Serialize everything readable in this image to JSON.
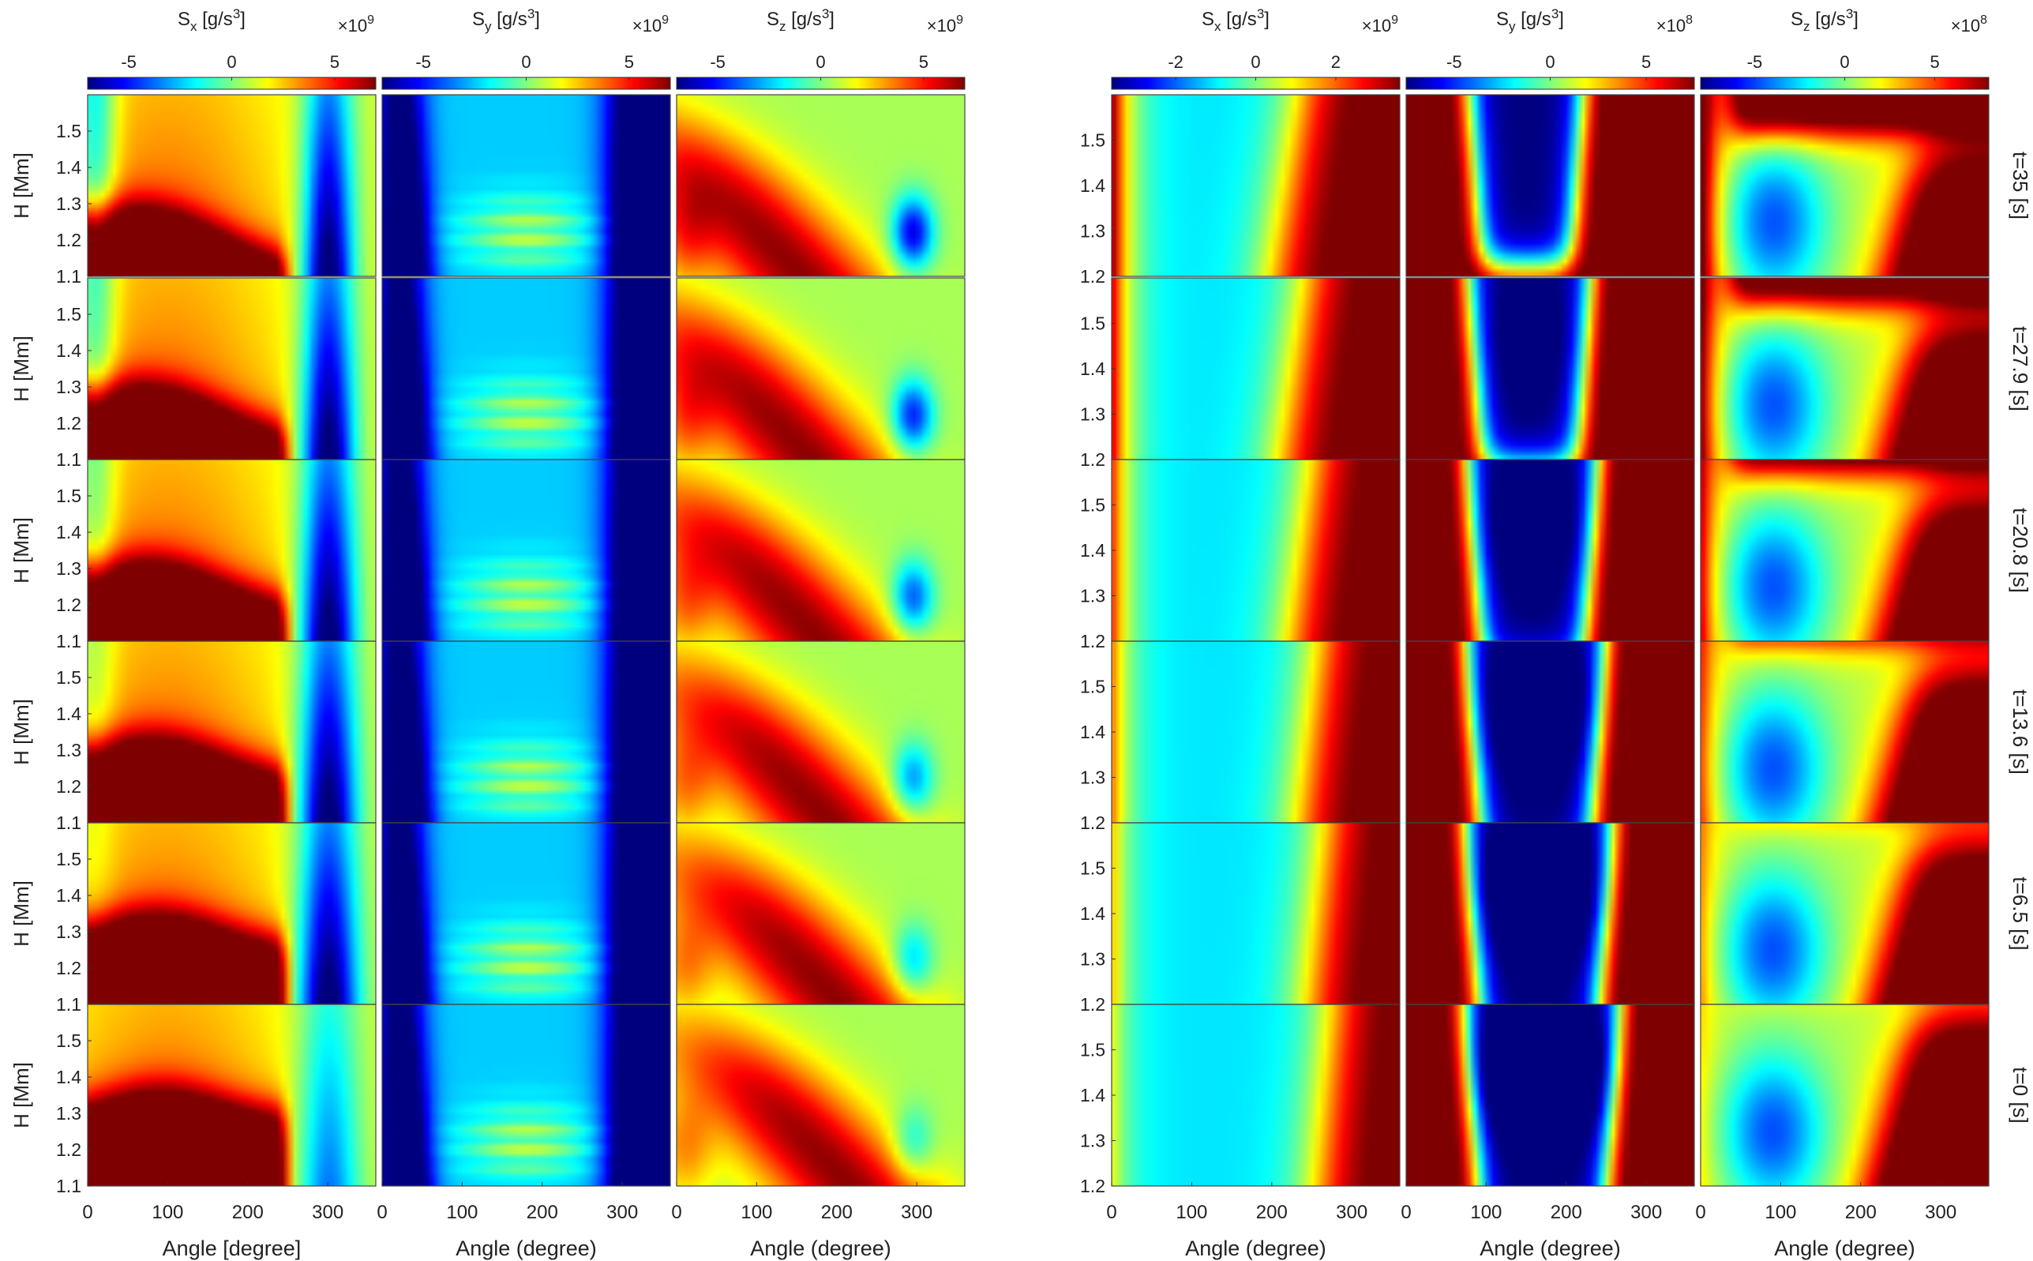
{
  "chart_data": [
    {
      "type": "heatmap",
      "quantity": "S_x",
      "group": "left",
      "colorbar": {
        "label_base": "S",
        "label_sub": "x",
        "label_unit": " [g/s",
        "label_exp": "3",
        "label_tail": "]",
        "multiplier_base": "×10",
        "multiplier_exp": "9",
        "ticks": [
          "-5",
          "0",
          "5"
        ],
        "tick_values": [
          -5,
          0,
          5
        ],
        "range": [
          -7,
          7
        ]
      },
      "xlabel": "Angle [degree]",
      "xticks": [
        "0",
        "100",
        "200",
        "300"
      ],
      "xtick_values": [
        0,
        100,
        200,
        300
      ],
      "xlim": [
        0,
        360
      ],
      "ylabel": "H [Mm]",
      "yticks": [
        "1.1",
        "1.2",
        "1.3",
        "1.4",
        "1.5"
      ],
      "ytick_values": [
        1.1,
        1.2,
        1.3,
        1.4,
        1.5
      ],
      "ylim": [
        1.1,
        1.6
      ],
      "rows": [
        "t=35",
        "t=27.9",
        "t=20.8",
        "t=13.6",
        "t=6.5",
        "t=0"
      ]
    },
    {
      "type": "heatmap",
      "quantity": "S_y",
      "group": "left",
      "colorbar": {
        "label_base": "S",
        "label_sub": "y",
        "label_unit": " [g/s",
        "label_exp": "3",
        "label_tail": "]",
        "multiplier_base": "×10",
        "multiplier_exp": "9",
        "ticks": [
          "-5",
          "0",
          "5"
        ],
        "tick_values": [
          -5,
          0,
          5
        ],
        "range": [
          -7,
          7
        ]
      },
      "xlabel": "Angle (degree)",
      "xticks": [
        "0",
        "100",
        "200",
        "300"
      ],
      "xtick_values": [
        0,
        100,
        200,
        300
      ],
      "xlim": [
        0,
        360
      ],
      "rows": [
        "t=35",
        "t=27.9",
        "t=20.8",
        "t=13.6",
        "t=6.5",
        "t=0"
      ]
    },
    {
      "type": "heatmap",
      "quantity": "S_z",
      "group": "left",
      "colorbar": {
        "label_base": "S",
        "label_sub": "z",
        "label_unit": " [g/s",
        "label_exp": "3",
        "label_tail": "]",
        "multiplier_base": "×10",
        "multiplier_exp": "9",
        "ticks": [
          "-5",
          "0",
          "5"
        ],
        "tick_values": [
          -5,
          0,
          5
        ],
        "range": [
          -7,
          7
        ]
      },
      "xlabel": "Angle (degree)",
      "xticks": [
        "0",
        "100",
        "200",
        "300"
      ],
      "xtick_values": [
        0,
        100,
        200,
        300
      ],
      "xlim": [
        0,
        360
      ],
      "rows": [
        "t=35",
        "t=27.9",
        "t=20.8",
        "t=13.6",
        "t=6.5",
        "t=0"
      ]
    },
    {
      "type": "heatmap",
      "quantity": "S_x",
      "group": "right",
      "colorbar": {
        "label_base": "S",
        "label_sub": "x",
        "label_unit": " [g/s",
        "label_exp": "3",
        "label_tail": "]",
        "multiplier_base": "×10",
        "multiplier_exp": "9",
        "ticks": [
          "-2",
          "0",
          "2"
        ],
        "tick_values": [
          -2,
          0,
          2
        ],
        "range": [
          -3.6,
          3.6
        ]
      },
      "xlabel": "Angle (degree)",
      "xticks": [
        "0",
        "100",
        "200",
        "300"
      ],
      "xtick_values": [
        0,
        100,
        200,
        300
      ],
      "xlim": [
        0,
        360
      ],
      "ylabel": "",
      "yticks": [
        "1.2",
        "1.3",
        "1.4",
        "1.5"
      ],
      "ytick_values": [
        1.2,
        1.3,
        1.4,
        1.5
      ],
      "ylim": [
        1.2,
        1.6
      ],
      "rows": [
        "t=35",
        "t=27.9",
        "t=20.8",
        "t=13.6",
        "t=6.5",
        "t=0"
      ]
    },
    {
      "type": "heatmap",
      "quantity": "S_y",
      "group": "right",
      "colorbar": {
        "label_base": "S",
        "label_sub": "y",
        "label_unit": " [g/s",
        "label_exp": "3",
        "label_tail": "]",
        "multiplier_base": "×10",
        "multiplier_exp": "8",
        "ticks": [
          "-5",
          "0",
          "5"
        ],
        "tick_values": [
          -5,
          0,
          5
        ],
        "range": [
          -7.5,
          7.5
        ]
      },
      "xlabel": "Angle (degree)",
      "xticks": [
        "0",
        "100",
        "200",
        "300"
      ],
      "xtick_values": [
        0,
        100,
        200,
        300
      ],
      "xlim": [
        0,
        360
      ],
      "rows": [
        "t=35",
        "t=27.9",
        "t=20.8",
        "t=13.6",
        "t=6.5",
        "t=0"
      ]
    },
    {
      "type": "heatmap",
      "quantity": "S_z",
      "group": "right",
      "colorbar": {
        "label_base": "S",
        "label_sub": "z",
        "label_unit": " [g/s",
        "label_exp": "3",
        "label_tail": "]",
        "multiplier_base": "×10",
        "multiplier_exp": "8",
        "ticks": [
          "-5",
          "0",
          "5"
        ],
        "tick_values": [
          -5,
          0,
          5
        ],
        "range": [
          -8,
          8
        ]
      },
      "xlabel": "Angle (degree)",
      "xticks": [
        "0",
        "100",
        "200",
        "300"
      ],
      "xtick_values": [
        0,
        100,
        200,
        300
      ],
      "xlim": [
        0,
        360
      ],
      "rows": [
        "t=35",
        "t=27.9",
        "t=20.8",
        "t=13.6",
        "t=6.5",
        "t=0"
      ]
    }
  ],
  "time_labels": [
    "t=35 [s]",
    "t=27.9 [s]",
    "t=20.8 [s]",
    "t=13.6 [s]",
    "t=6.5 [s]",
    "t=0 [s]"
  ],
  "colormap": {
    "name": "jet",
    "stops": [
      "#00007f",
      "#0000ff",
      "#007fff",
      "#00ffff",
      "#7fff7f",
      "#ffff00",
      "#ff7f00",
      "#ff0000",
      "#7f0000"
    ]
  }
}
